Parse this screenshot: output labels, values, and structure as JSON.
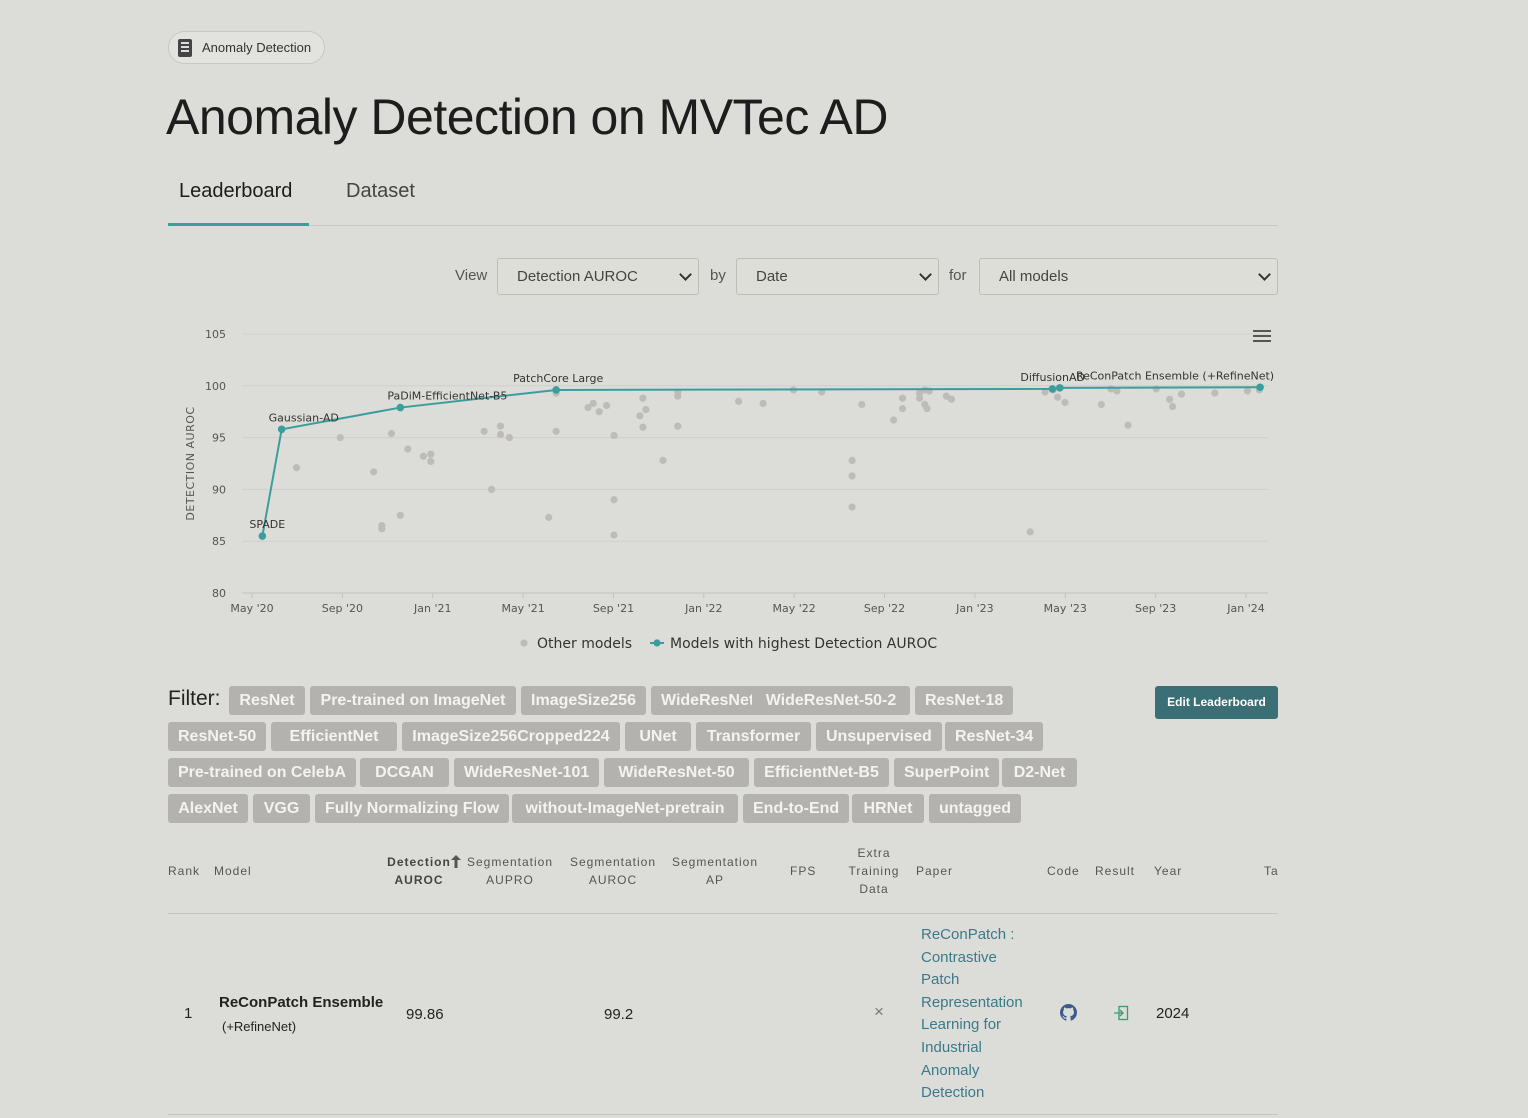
{
  "badge": {
    "label": "Anomaly Detection",
    "icon": "dataset-icon"
  },
  "page_title": "Anomaly Detection on MVTec AD",
  "tabs": [
    {
      "label": "Leaderboard",
      "active": true
    },
    {
      "label": "Dataset",
      "active": false
    }
  ],
  "controls": {
    "view_label": "View",
    "view_value": "Detection AUROC",
    "by_label": "by",
    "by_value": "Date",
    "for_label": "for",
    "for_value": "All models"
  },
  "chart_data": {
    "type": "scatter",
    "title": "",
    "xlabel": "",
    "ylabel": "DETECTION AUROC",
    "ylim": [
      80,
      105
    ],
    "yticks": [
      "80",
      "85",
      "90",
      "95",
      "100",
      "105"
    ],
    "xticks": [
      "May '20",
      "Sep '20",
      "Jan '21",
      "May '21",
      "Sep '21",
      "Jan '22",
      "May '22",
      "Sep '22",
      "Jan '23",
      "May '23",
      "Sep '23",
      "Jan '24"
    ],
    "grid": true,
    "legend_position": "bottom",
    "legend": [
      "Other models",
      "Models with highest Detection AUROC"
    ],
    "colors": {
      "other": "#bdbcb8",
      "best": "#3a9e9c"
    },
    "best_series": [
      {
        "date": "2020-05-15",
        "value": 85.5,
        "label": "SPADE"
      },
      {
        "date": "2020-06-10",
        "value": 95.8,
        "label": "Gaussian-AD"
      },
      {
        "date": "2020-11-17",
        "value": 97.9,
        "label": "PaDiM-EfficientNet-B5"
      },
      {
        "date": "2021-06-15",
        "value": 99.6,
        "label": "PatchCore Large"
      },
      {
        "date": "2023-04-15",
        "value": 99.7,
        "label": "DiffusionAD"
      },
      {
        "date": "2023-04-25",
        "value": 99.8,
        "label": ""
      },
      {
        "date": "2024-01-20",
        "value": 99.86,
        "label": "ReConPatch Ensemble (+RefineNet)"
      }
    ],
    "other_series": [
      {
        "date": "2020-06-30",
        "value": 92.1
      },
      {
        "date": "2020-08-28",
        "value": 95.0
      },
      {
        "date": "2020-10-12",
        "value": 91.7
      },
      {
        "date": "2020-10-23",
        "value": 86.5
      },
      {
        "date": "2020-10-23",
        "value": 86.2
      },
      {
        "date": "2020-11-05",
        "value": 95.4
      },
      {
        "date": "2020-11-17",
        "value": 87.5
      },
      {
        "date": "2020-11-27",
        "value": 93.9
      },
      {
        "date": "2020-12-18",
        "value": 93.2
      },
      {
        "date": "2020-12-28",
        "value": 93.4
      },
      {
        "date": "2020-12-28",
        "value": 92.7
      },
      {
        "date": "2021-03-10",
        "value": 95.6
      },
      {
        "date": "2021-03-20",
        "value": 90.0
      },
      {
        "date": "2021-04-01",
        "value": 96.1
      },
      {
        "date": "2021-04-01",
        "value": 95.3
      },
      {
        "date": "2021-04-13",
        "value": 95.0
      },
      {
        "date": "2021-06-05",
        "value": 87.3
      },
      {
        "date": "2021-06-15",
        "value": 99.3
      },
      {
        "date": "2021-06-15",
        "value": 95.6
      },
      {
        "date": "2021-07-28",
        "value": 97.9
      },
      {
        "date": "2021-08-04",
        "value": 98.3
      },
      {
        "date": "2021-08-12",
        "value": 97.5
      },
      {
        "date": "2021-08-22",
        "value": 98.1
      },
      {
        "date": "2021-09-01",
        "value": 95.2
      },
      {
        "date": "2021-09-01",
        "value": 89.0
      },
      {
        "date": "2021-09-01",
        "value": 85.6
      },
      {
        "date": "2021-10-06",
        "value": 97.1
      },
      {
        "date": "2021-10-10",
        "value": 98.8
      },
      {
        "date": "2021-10-10",
        "value": 96.0
      },
      {
        "date": "2021-10-14",
        "value": 97.7
      },
      {
        "date": "2021-11-06",
        "value": 92.8
      },
      {
        "date": "2021-11-26",
        "value": 99.4
      },
      {
        "date": "2021-11-26",
        "value": 99.0
      },
      {
        "date": "2021-11-26",
        "value": 96.1
      },
      {
        "date": "2022-02-16",
        "value": 98.5
      },
      {
        "date": "2022-03-21",
        "value": 98.3
      },
      {
        "date": "2022-05-01",
        "value": 99.6
      },
      {
        "date": "2022-06-08",
        "value": 99.4
      },
      {
        "date": "2022-07-19",
        "value": 92.8
      },
      {
        "date": "2022-07-19",
        "value": 91.3
      },
      {
        "date": "2022-07-19",
        "value": 88.3
      },
      {
        "date": "2022-08-01",
        "value": 98.2
      },
      {
        "date": "2022-09-13",
        "value": 96.7
      },
      {
        "date": "2022-09-25",
        "value": 98.8
      },
      {
        "date": "2022-09-25",
        "value": 97.8
      },
      {
        "date": "2022-10-18",
        "value": 99.3
      },
      {
        "date": "2022-10-18",
        "value": 98.8
      },
      {
        "date": "2022-10-25",
        "value": 99.6
      },
      {
        "date": "2022-10-25",
        "value": 98.2
      },
      {
        "date": "2022-10-28",
        "value": 97.8
      },
      {
        "date": "2022-10-31",
        "value": 99.5
      },
      {
        "date": "2022-11-23",
        "value": 99.0
      },
      {
        "date": "2022-11-30",
        "value": 98.7
      },
      {
        "date": "2023-03-16",
        "value": 85.9
      },
      {
        "date": "2023-04-05",
        "value": 99.4
      },
      {
        "date": "2023-04-16",
        "value": 99.6
      },
      {
        "date": "2023-04-22",
        "value": 98.9
      },
      {
        "date": "2023-05-02",
        "value": 98.4
      },
      {
        "date": "2023-06-20",
        "value": 98.2
      },
      {
        "date": "2023-07-03",
        "value": 99.7
      },
      {
        "date": "2023-07-11",
        "value": 99.5
      },
      {
        "date": "2023-07-26",
        "value": 96.2
      },
      {
        "date": "2023-09-02",
        "value": 99.7
      },
      {
        "date": "2023-09-20",
        "value": 98.7
      },
      {
        "date": "2023-09-24",
        "value": 98.0
      },
      {
        "date": "2023-10-06",
        "value": 99.2
      },
      {
        "date": "2023-11-20",
        "value": 99.3
      },
      {
        "date": "2024-01-03",
        "value": 99.5
      },
      {
        "date": "2024-01-19",
        "value": 99.6
      }
    ]
  },
  "filter": {
    "label": "Filter:",
    "tags": [
      "ResNet",
      "Pre-trained on ImageNet",
      "ImageSize256",
      "WideResNet",
      "WideResNet-50-2",
      "ResNet-18",
      "ResNet-50",
      "EfficientNet",
      "ImageSize256Cropped224",
      "UNet",
      "Transformer",
      "Unsupervised",
      "ResNet-34",
      "Pre-trained on CelebA",
      "DCGAN",
      "WideResNet-101",
      "WideResNet-50",
      "EfficientNet-B5",
      "SuperPoint",
      "D2-Net",
      "AlexNet",
      "VGG",
      "Fully Normalizing Flow",
      "without-ImageNet-pretrain",
      "End-to-End",
      "HRNet",
      "untagged"
    ],
    "edit_button": "Edit Leaderboard"
  },
  "table": {
    "headers": {
      "rank": "Rank",
      "model": "Model",
      "det_auroc_1": "Detection",
      "det_auroc_2": "AUROC",
      "seg_aupro_1": "Segmentation",
      "seg_aupro_2": "AUPRO",
      "seg_auroc_1": "Segmentation",
      "seg_auroc_2": "AUROC",
      "seg_ap_1": "Segmentation",
      "seg_ap_2": "AP",
      "fps": "FPS",
      "extra_1": "Extra",
      "extra_2": "Training",
      "extra_3": "Data",
      "paper": "Paper",
      "code": "Code",
      "result": "Result",
      "year": "Year",
      "tags": "Ta"
    },
    "rows": [
      {
        "rank": "1",
        "model_name": "ReConPatch Ensemble",
        "model_sub": "(+RefineNet)",
        "det_auroc": "99.86",
        "seg_auroc": "99.2",
        "extra_data": "×",
        "paper": "ReConPatch : Contrastive Patch Representation Learning for Industrial Anomaly Detection",
        "year": "2024"
      }
    ]
  }
}
